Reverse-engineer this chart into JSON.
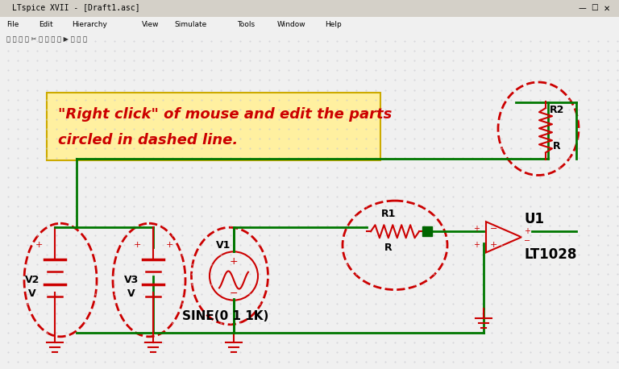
{
  "bg_color": "#f0f0f0",
  "canvas_color": "#ffffff",
  "dot_color": "#c8c8d0",
  "title_bar": "LTspice XVII - [Draft1.asc]",
  "menu_items": [
    "File",
    "Edit",
    "Hierarchy",
    "View",
    "Simulate",
    "Tools",
    "Window",
    "Help"
  ],
  "wire_color": "#007700",
  "component_color": "#cc0000",
  "label_color": "#000000",
  "highlight_color": "#cc0000",
  "text_box_bg": "#fff0a0",
  "text_box_border": "#cccc00",
  "text_box_text_color": "#cc0000",
  "text_line1": "\"Right click\" of mouse and edit the parts",
  "text_line2": "circled in dashed line.",
  "node_dot_color": "#006600",
  "opamp_color": "#cc0000",
  "opamp_label_color": "#000000"
}
